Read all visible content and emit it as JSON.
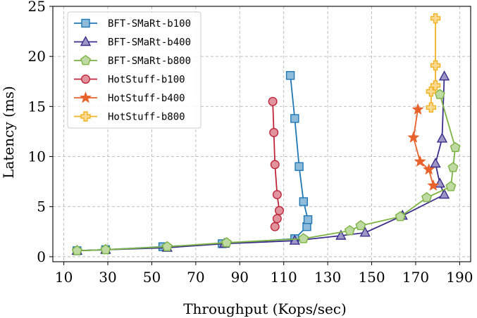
{
  "chart_data": {
    "type": "line",
    "xlabel": "Throughput (Kops/sec)",
    "ylabel": "Latency (ms)",
    "xlim": [
      5,
      195
    ],
    "ylim": [
      -0.5,
      25
    ],
    "xticks": [
      10,
      30,
      50,
      70,
      90,
      110,
      130,
      150,
      170,
      190
    ],
    "yticks": [
      0,
      5,
      10,
      15,
      20,
      25
    ],
    "grid": true,
    "grid_style": "dashed",
    "legend_position": "top-left",
    "series": [
      {
        "name": "BFT-SMaRt-b100",
        "color": "#1f77b4",
        "marker": "square",
        "x": [
          16,
          29,
          55,
          82,
          115,
          120.5,
          121,
          119,
          117,
          115,
          113
        ],
        "y": [
          0.6,
          0.7,
          1.0,
          1.3,
          1.8,
          3.0,
          3.7,
          5.5,
          9.0,
          13.8,
          18.1
        ]
      },
      {
        "name": "BFT-SMaRt-b400",
        "color": "#3b2e8c",
        "marker": "triangle",
        "x": [
          16,
          29,
          57,
          83,
          115,
          136,
          147,
          164,
          183,
          181,
          179,
          182,
          183
        ],
        "y": [
          0.6,
          0.7,
          0.9,
          1.3,
          1.6,
          2.1,
          2.4,
          4.1,
          6.2,
          7.3,
          9.3,
          11.8,
          18.0
        ]
      },
      {
        "name": "BFT-SMaRt-b800",
        "color": "#7cb342",
        "marker": "pentagon",
        "x": [
          16,
          29,
          57,
          84,
          119,
          140,
          145,
          163,
          175,
          186,
          187,
          188,
          181
        ],
        "y": [
          0.6,
          0.7,
          1.0,
          1.4,
          1.8,
          2.6,
          3.1,
          4.0,
          5.9,
          7.0,
          8.9,
          10.9,
          16.2
        ]
      },
      {
        "name": "HotStuff-b100",
        "color": "#c0263a",
        "marker": "circle",
        "x": [
          106,
          107,
          108,
          107,
          106,
          105.5,
          105
        ],
        "y": [
          3.0,
          3.8,
          4.6,
          6.2,
          9.2,
          12.4,
          15.5
        ]
      },
      {
        "name": "HotStuff-b400",
        "color": "#e8622c",
        "marker": "star",
        "x": [
          178,
          176,
          172,
          169,
          171
        ],
        "y": [
          7.1,
          8.7,
          9.5,
          11.9,
          14.7
        ]
      },
      {
        "name": "HotStuff-b800",
        "color": "#f2b322",
        "marker": "plus",
        "x": [
          177,
          177,
          179,
          179,
          179
        ],
        "y": [
          14.9,
          16.5,
          17.1,
          19.1,
          23.8
        ]
      }
    ]
  }
}
